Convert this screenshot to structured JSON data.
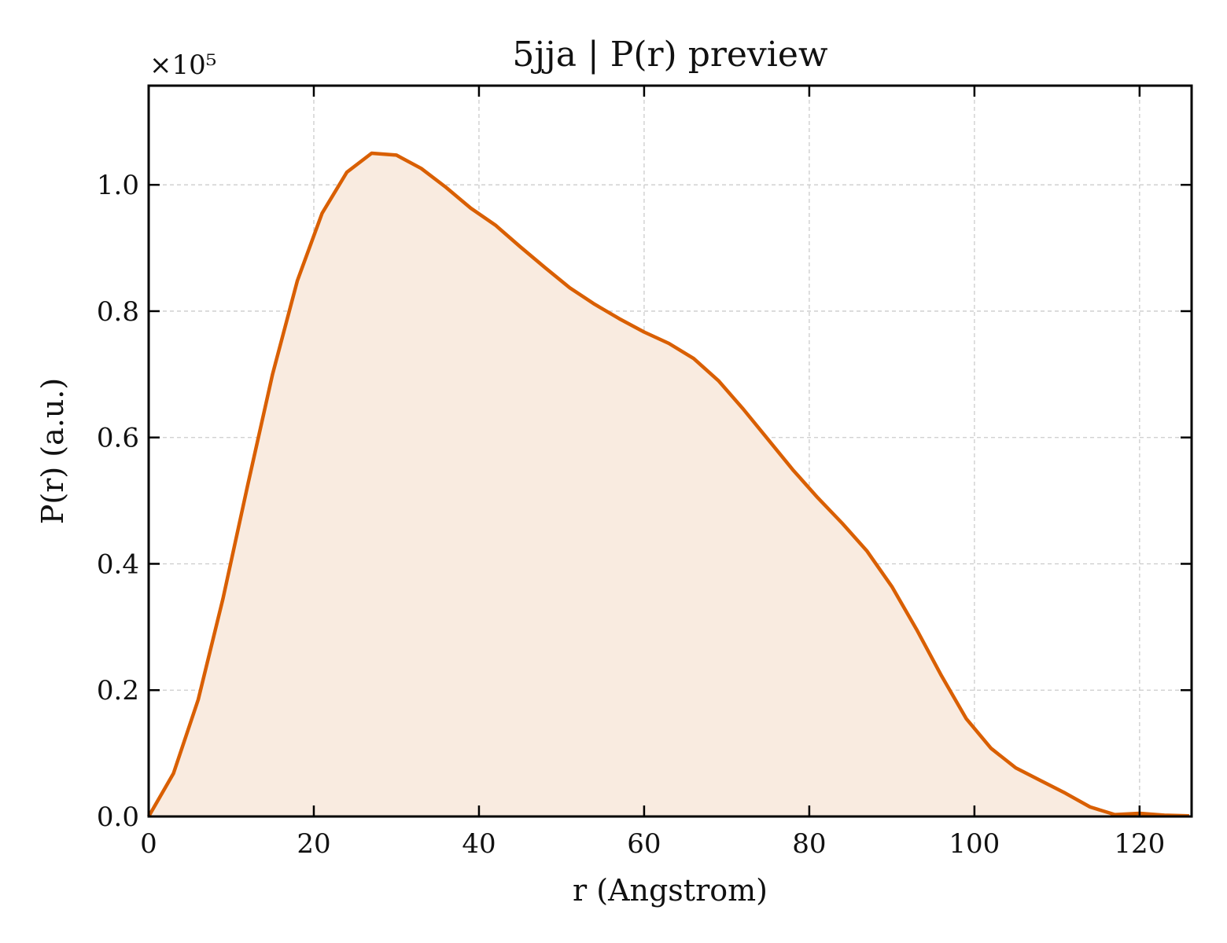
{
  "chart_data": {
    "type": "area",
    "title": "5jja | P(r) preview",
    "xlabel": "r (Angstrom)",
    "ylabel": "P(r) (a.u.)",
    "y_multiplier_label": "×10⁵",
    "xlim": [
      0,
      126.3
    ],
    "ylim": [
      0,
      1.157
    ],
    "x_ticks": [
      0,
      20,
      40,
      60,
      80,
      100,
      120
    ],
    "x_tick_labels": [
      "0",
      "20",
      "40",
      "60",
      "80",
      "100",
      "120"
    ],
    "y_ticks": [
      0,
      0.2,
      0.4,
      0.6,
      0.8,
      1.0
    ],
    "y_tick_labels": [
      "0.0",
      "0.2",
      "0.4",
      "0.6",
      "0.8",
      "1.0"
    ],
    "grid": true,
    "line_color": "#d95f02",
    "fill_color": "#f9ebe0",
    "series": [
      {
        "x": [
          0,
          3,
          6,
          9,
          12,
          15,
          18,
          21,
          24,
          27,
          30,
          33,
          36,
          39,
          42,
          45,
          48,
          51,
          54,
          57,
          60,
          63,
          66,
          69,
          72,
          75,
          78,
          81,
          84,
          87,
          90,
          93,
          96,
          99,
          102,
          105,
          108,
          111,
          114,
          117,
          120,
          123,
          126
        ],
        "y": [
          0.0,
          0.068,
          0.185,
          0.345,
          0.525,
          0.7,
          0.848,
          0.955,
          1.02,
          1.05,
          1.047,
          1.026,
          0.996,
          0.963,
          0.936,
          0.902,
          0.869,
          0.837,
          0.811,
          0.788,
          0.767,
          0.749,
          0.725,
          0.69,
          0.645,
          0.597,
          0.549,
          0.505,
          0.464,
          0.42,
          0.364,
          0.296,
          0.223,
          0.155,
          0.108,
          0.077,
          0.057,
          0.037,
          0.015,
          0.003,
          0.005,
          0.002,
          0.001
        ]
      }
    ]
  }
}
